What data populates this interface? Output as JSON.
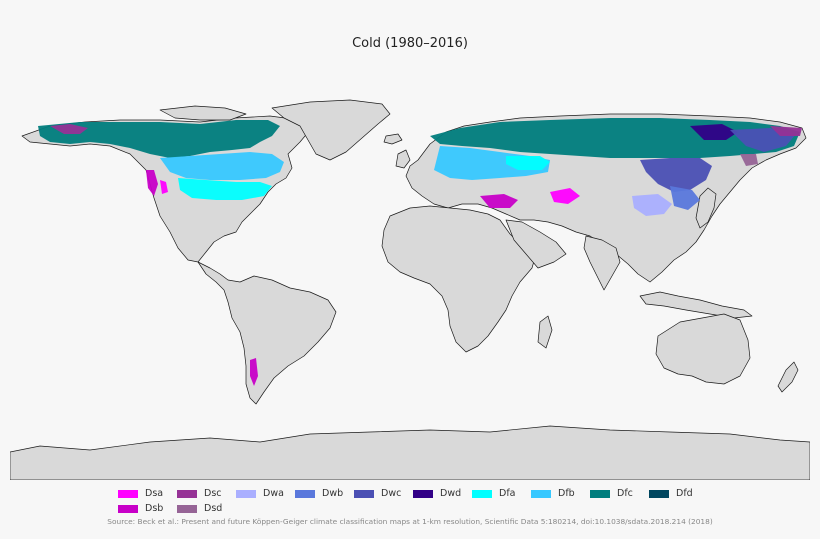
{
  "title": "Cold (1980–2016)",
  "colors": {
    "land": "#d9d9d9",
    "coast": "#1a1a1a",
    "background": "#f7f7f7"
  },
  "legend": {
    "row1": [
      {
        "code": "Dsa",
        "color": "#ff00ff"
      },
      {
        "code": "Dsc",
        "color": "#963296"
      },
      {
        "code": "Dwa",
        "color": "#aaafff"
      },
      {
        "code": "Dwb",
        "color": "#5a78dc"
      },
      {
        "code": "Dwc",
        "color": "#4b50b4"
      },
      {
        "code": "Dwd",
        "color": "#320087"
      },
      {
        "code": "Dfa",
        "color": "#00ffff"
      },
      {
        "code": "Dfb",
        "color": "#37c8ff"
      },
      {
        "code": "Dfc",
        "color": "#007d7d"
      },
      {
        "code": "Dfd",
        "color": "#00465f"
      }
    ],
    "row2": [
      {
        "code": "Dsb",
        "color": "#c800c8"
      },
      {
        "code": "Dsd",
        "color": "#966496"
      }
    ]
  },
  "source": "Source: Beck et al.: Present and future Köppen-Geiger climate classification maps at 1-km resolution, Scientific Data 5:180214, doi:10.1038/sdata.2018.214 (2018)"
}
